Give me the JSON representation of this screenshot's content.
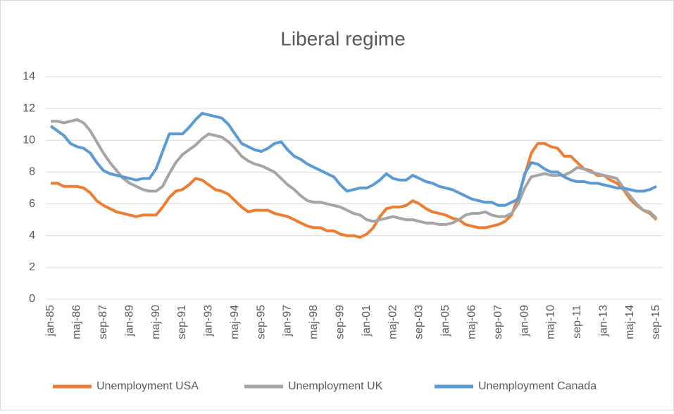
{
  "chart_data": {
    "type": "line",
    "title": "Liberal regime",
    "categories": [
      "jan-85",
      null,
      null,
      null,
      "maj-86",
      null,
      null,
      null,
      "sep-87",
      null,
      null,
      null,
      "jan-89",
      null,
      null,
      null,
      "maj-90",
      null,
      null,
      null,
      "sep-91",
      null,
      null,
      null,
      "jan-93",
      null,
      null,
      null,
      "maj-94",
      null,
      null,
      null,
      "sep-95",
      null,
      null,
      null,
      "jan-97",
      null,
      null,
      null,
      "maj-98",
      null,
      null,
      null,
      "sep-99",
      null,
      null,
      null,
      "jan-01",
      null,
      null,
      null,
      "maj-02",
      null,
      null,
      null,
      "sep-03",
      null,
      null,
      null,
      "jan-05",
      null,
      null,
      null,
      "maj-06",
      null,
      null,
      null,
      "sep-07",
      null,
      null,
      null,
      "jan-09",
      null,
      null,
      null,
      "maj-10",
      null,
      null,
      null,
      "sep-11",
      null,
      null,
      null,
      "jan-13",
      null,
      null,
      null,
      "maj-14",
      null,
      null,
      null,
      "sep-15"
    ],
    "series": [
      {
        "name": "Unemployment USA",
        "color": "#ed7d31",
        "values": [
          7.3,
          7.3,
          7.1,
          7.1,
          7.1,
          7.0,
          6.7,
          6.2,
          5.9,
          5.7,
          5.5,
          5.4,
          5.3,
          5.2,
          5.3,
          5.3,
          5.3,
          5.8,
          6.4,
          6.8,
          6.9,
          7.2,
          7.6,
          7.5,
          7.2,
          6.9,
          6.8,
          6.6,
          6.2,
          5.8,
          5.5,
          5.6,
          5.6,
          5.6,
          5.4,
          5.3,
          5.2,
          5.0,
          4.8,
          4.6,
          4.5,
          4.5,
          4.3,
          4.3,
          4.1,
          4.0,
          4.0,
          3.9,
          4.1,
          4.5,
          5.2,
          5.7,
          5.8,
          5.8,
          5.9,
          6.2,
          6.0,
          5.7,
          5.5,
          5.4,
          5.3,
          5.1,
          5.0,
          4.7,
          4.6,
          4.5,
          4.5,
          4.6,
          4.7,
          4.9,
          5.3,
          6.4,
          7.8,
          9.2,
          9.8,
          9.8,
          9.6,
          9.5,
          9.0,
          9.0,
          8.6,
          8.2,
          8.1,
          7.8,
          7.8,
          7.5,
          7.3,
          6.9,
          6.3,
          5.9,
          5.6,
          5.4,
          5.0
        ]
      },
      {
        "name": "Unemployment UK",
        "color": "#a5a5a5",
        "values": [
          11.2,
          11.2,
          11.1,
          11.2,
          11.3,
          11.1,
          10.6,
          9.9,
          9.2,
          8.6,
          8.1,
          7.6,
          7.3,
          7.1,
          6.9,
          6.8,
          6.8,
          7.1,
          7.9,
          8.6,
          9.1,
          9.4,
          9.7,
          10.1,
          10.4,
          10.3,
          10.2,
          9.9,
          9.5,
          9.0,
          8.7,
          8.5,
          8.4,
          8.2,
          8.0,
          7.6,
          7.2,
          6.9,
          6.5,
          6.2,
          6.1,
          6.1,
          6.0,
          5.9,
          5.8,
          5.6,
          5.4,
          5.3,
          5.0,
          4.9,
          5.0,
          5.1,
          5.2,
          5.1,
          5.0,
          5.0,
          4.9,
          4.8,
          4.8,
          4.7,
          4.7,
          4.8,
          5.0,
          5.3,
          5.4,
          5.4,
          5.5,
          5.3,
          5.2,
          5.2,
          5.4,
          6.0,
          7.0,
          7.7,
          7.8,
          7.9,
          7.8,
          7.8,
          7.8,
          8.0,
          8.3,
          8.2,
          8.0,
          7.9,
          7.8,
          7.7,
          7.6,
          7.0,
          6.5,
          6.0,
          5.6,
          5.5,
          5.1
        ]
      },
      {
        "name": "Unemployment Canada",
        "color": "#5b9bd5",
        "values": [
          10.9,
          10.6,
          10.3,
          9.8,
          9.6,
          9.5,
          9.2,
          8.6,
          8.1,
          7.9,
          7.8,
          7.7,
          7.6,
          7.5,
          7.6,
          7.6,
          8.2,
          9.3,
          10.4,
          10.4,
          10.4,
          10.8,
          11.3,
          11.7,
          11.6,
          11.5,
          11.4,
          11.0,
          10.4,
          9.8,
          9.6,
          9.4,
          9.3,
          9.5,
          9.8,
          9.9,
          9.4,
          9.0,
          8.8,
          8.5,
          8.3,
          8.1,
          7.9,
          7.7,
          7.2,
          6.8,
          6.9,
          7.0,
          7.0,
          7.2,
          7.5,
          7.9,
          7.6,
          7.5,
          7.5,
          7.8,
          7.6,
          7.4,
          7.3,
          7.1,
          7.0,
          6.9,
          6.7,
          6.5,
          6.3,
          6.2,
          6.1,
          6.1,
          5.9,
          5.9,
          6.1,
          6.3,
          7.9,
          8.6,
          8.5,
          8.2,
          8.0,
          8.0,
          7.7,
          7.5,
          7.4,
          7.4,
          7.3,
          7.3,
          7.2,
          7.1,
          7.0,
          7.0,
          6.9,
          6.8,
          6.8,
          6.9,
          7.1
        ]
      }
    ],
    "ylim": [
      0,
      14
    ],
    "yticks": [
      0,
      2,
      4,
      6,
      8,
      10,
      12,
      14
    ],
    "grid": true,
    "legend": "bottom"
  }
}
